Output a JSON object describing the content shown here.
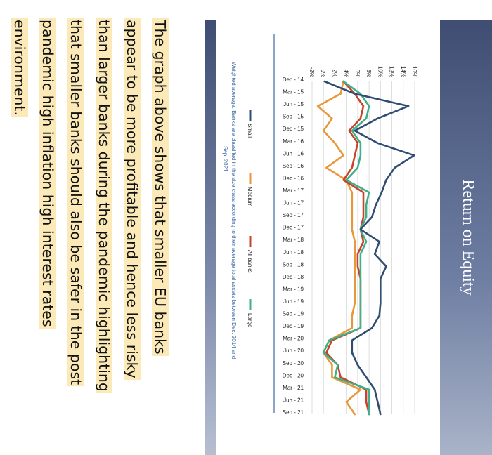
{
  "slide": {
    "title": "Return on Equity"
  },
  "caption": {
    "lines": [
      "The graph above shows that smaller EU banks",
      "appear to be more profitable and hence less risky",
      "than larger banks during the pandemic highlighting",
      "that smaller banks should also be safer in the post",
      "pandemic high inflation high interest rates",
      "environment."
    ]
  },
  "colors": {
    "small": "#2f4c72",
    "medium": "#e8983a",
    "all_banks": "#c8432b",
    "large": "#3db08a",
    "title_bar": "#4f5e85",
    "note": "#3e6aa3"
  },
  "chart_data": {
    "type": "line",
    "title": "",
    "xlabel": "",
    "ylabel": "",
    "ylim": [
      -2,
      16
    ],
    "y_ticks": [
      "-2%",
      "0%",
      "2%",
      "4%",
      "6%",
      "8%",
      "10%",
      "12%",
      "14%",
      "16%"
    ],
    "categories": [
      "Dec - 14",
      "Mar - 15",
      "Jun - 15",
      "Sep - 15",
      "Dec - 15",
      "Mar - 16",
      "Jun - 16",
      "Sep - 16",
      "Dec - 16",
      "Mar - 17",
      "Jun - 17",
      "Sep - 17",
      "Dec - 17",
      "Mar - 18",
      "Jun - 18",
      "Sep - 18",
      "Dec - 18",
      "Mar - 19",
      "Jun - 19",
      "Sep - 19",
      "Dec - 19",
      "Mar - 20",
      "Jun - 20",
      "Sep - 20",
      "Dec - 20",
      "Mar - 21",
      "Jun - 21",
      "Sep - 21"
    ],
    "series": [
      {
        "name": "Small",
        "values": [
          0.2,
          5.5,
          14.9,
          9.5,
          5.5,
          9.5,
          15.9,
          12.5,
          11.0,
          10.2,
          9.2,
          8.5,
          6.5,
          9.8,
          9.0,
          11.0,
          10.0,
          10.0,
          10.0,
          9.8,
          8.5,
          5.0,
          5.0,
          6.0,
          7.5,
          9.0,
          9.5,
          10.0
        ]
      },
      {
        "name": "Medium",
        "values": [
          3.5,
          3.0,
          -1.0,
          1.5,
          0.0,
          2.0,
          3.5,
          0.5,
          4.0,
          5.0,
          5.0,
          5.0,
          5.0,
          5.5,
          5.5,
          5.5,
          5.5,
          5.5,
          5.5,
          5.0,
          5.0,
          1.0,
          0.0,
          1.5,
          1.5,
          6.5,
          4.0,
          5.5
        ]
      },
      {
        "name": "All banks",
        "values": [
          3.5,
          5.5,
          7.0,
          6.5,
          4.5,
          6.0,
          5.5,
          5.0,
          3.5,
          7.0,
          7.0,
          7.0,
          6.5,
          7.0,
          6.0,
          6.0,
          6.5,
          6.5,
          6.5,
          6.5,
          6.5,
          1.5,
          0.5,
          2.5,
          3.0,
          7.5,
          7.5,
          8.0
        ]
      },
      {
        "name": "Large",
        "values": [
          3.5,
          6.5,
          8.0,
          7.5,
          5.0,
          6.5,
          6.5,
          6.0,
          4.0,
          8.0,
          7.5,
          7.5,
          6.5,
          7.5,
          6.5,
          6.5,
          6.5,
          6.5,
          6.5,
          6.5,
          6.5,
          1.0,
          0.0,
          2.5,
          2.0,
          8.0,
          8.0,
          8.0
        ]
      }
    ],
    "legend": [
      "Small",
      "Medium",
      "All banks",
      "Large"
    ],
    "legend_position": "bottom",
    "grid": true,
    "note": "Weighted average. Banks are classified in the size class according to their average total assets between Dec. 2014 and Sep. 2021."
  }
}
